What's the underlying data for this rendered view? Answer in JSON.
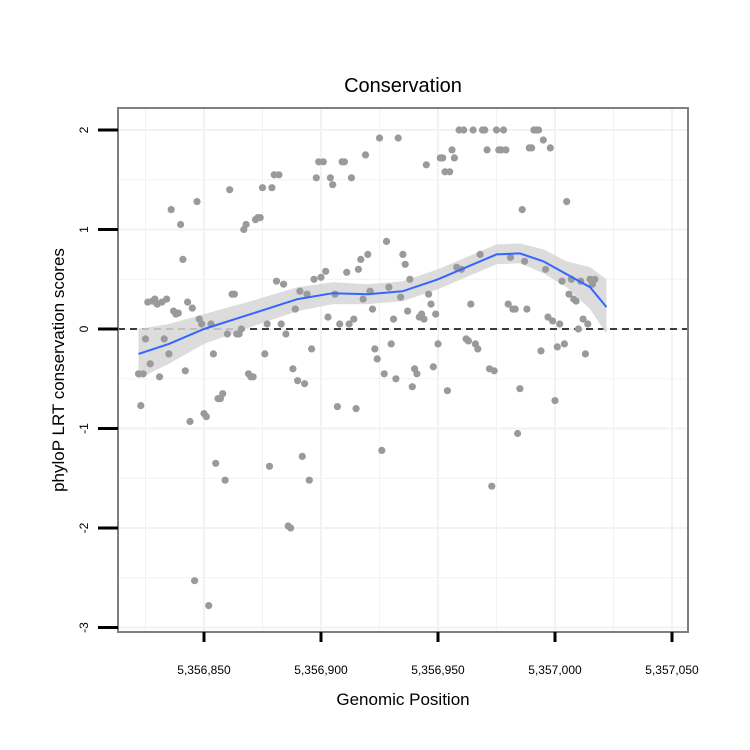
{
  "colors": {
    "points": "#9a9a9a",
    "smooth_line": "#3366ff",
    "ribbon": "#d6d6d6",
    "grid": "#f2f2f2",
    "frame": "#7f7f7f",
    "reference_line": "#000000"
  },
  "chart_data": {
    "type": "scatter",
    "title": "Conservation",
    "xlabel": "Genomic Position",
    "ylabel": "phyloP LRT conservation scores",
    "xlim": [
      5356820,
      5357048
    ],
    "ylim": [
      -3,
      2.2
    ],
    "x_ticks": [
      5356850,
      5356900,
      5356950,
      5357000,
      5357050
    ],
    "x_tick_labels": [
      "5,356,850",
      "5,356,900",
      "5,356,950",
      "5,357,000",
      "5,357,050"
    ],
    "y_ticks": [
      -3,
      -2,
      -1,
      0,
      1,
      2
    ],
    "y_tick_labels": [
      "-3",
      "-2",
      "-1",
      "0",
      "1",
      "2"
    ],
    "grid": true,
    "reference_line": {
      "y": 0,
      "style": "dashed"
    },
    "points": [
      [
        5356822,
        -0.45
      ],
      [
        5356823,
        -0.77
      ],
      [
        5356824,
        -0.45
      ],
      [
        5356825,
        -0.1
      ],
      [
        5356826,
        0.27
      ],
      [
        5356827,
        -0.35
      ],
      [
        5356828,
        0.28
      ],
      [
        5356829,
        0.3
      ],
      [
        5356830,
        0.25
      ],
      [
        5356831,
        -0.48
      ],
      [
        5356832,
        0.27
      ],
      [
        5356833,
        -0.1
      ],
      [
        5356834,
        0.3
      ],
      [
        5356835,
        -0.25
      ],
      [
        5356836,
        1.2
      ],
      [
        5356837,
        0.18
      ],
      [
        5356838,
        0.15
      ],
      [
        5356839,
        0.16
      ],
      [
        5356840,
        1.05
      ],
      [
        5356841,
        0.7
      ],
      [
        5356842,
        -0.42
      ],
      [
        5356843,
        0.27
      ],
      [
        5356844,
        -0.93
      ],
      [
        5356845,
        0.21
      ],
      [
        5356846,
        -2.53
      ],
      [
        5356847,
        1.28
      ],
      [
        5356848,
        0.1
      ],
      [
        5356849,
        0.05
      ],
      [
        5356850,
        -0.85
      ],
      [
        5356851,
        -0.88
      ],
      [
        5356852,
        -2.78
      ],
      [
        5356853,
        0.05
      ],
      [
        5356854,
        -0.25
      ],
      [
        5356855,
        -1.35
      ],
      [
        5356856,
        -0.7
      ],
      [
        5356857,
        -0.7
      ],
      [
        5356858,
        -0.65
      ],
      [
        5356859,
        -1.52
      ],
      [
        5356860,
        -0.05
      ],
      [
        5356861,
        1.4
      ],
      [
        5356862,
        0.35
      ],
      [
        5356863,
        0.35
      ],
      [
        5356864,
        -0.05
      ],
      [
        5356865,
        -0.05
      ],
      [
        5356866,
        0.0
      ],
      [
        5356867,
        1.0
      ],
      [
        5356868,
        1.05
      ],
      [
        5356869,
        -0.45
      ],
      [
        5356870,
        -0.48
      ],
      [
        5356871,
        -0.48
      ],
      [
        5356872,
        1.1
      ],
      [
        5356873,
        1.12
      ],
      [
        5356874,
        1.12
      ],
      [
        5356875,
        1.42
      ],
      [
        5356876,
        -0.25
      ],
      [
        5356877,
        0.05
      ],
      [
        5356878,
        -1.38
      ],
      [
        5356879,
        1.42
      ],
      [
        5356880,
        1.55
      ],
      [
        5356881,
        0.48
      ],
      [
        5356882,
        1.55
      ],
      [
        5356883,
        0.05
      ],
      [
        5356884,
        0.45
      ],
      [
        5356885,
        -0.05
      ],
      [
        5356886,
        -1.98
      ],
      [
        5356887,
        -2.0
      ],
      [
        5356888,
        -0.4
      ],
      [
        5356889,
        0.2
      ],
      [
        5356890,
        -0.52
      ],
      [
        5356891,
        0.38
      ],
      [
        5356892,
        -1.28
      ],
      [
        5356893,
        -0.55
      ],
      [
        5356894,
        0.35
      ],
      [
        5356895,
        -1.52
      ],
      [
        5356896,
        -0.2
      ],
      [
        5356897,
        0.5
      ],
      [
        5356898,
        1.52
      ],
      [
        5356899,
        1.68
      ],
      [
        5356900,
        0.52
      ],
      [
        5356901,
        1.68
      ],
      [
        5356902,
        0.58
      ],
      [
        5356903,
        0.12
      ],
      [
        5356904,
        1.52
      ],
      [
        5356905,
        1.45
      ],
      [
        5356906,
        0.35
      ],
      [
        5356907,
        -0.78
      ],
      [
        5356908,
        0.05
      ],
      [
        5356909,
        1.68
      ],
      [
        5356910,
        1.68
      ],
      [
        5356911,
        0.57
      ],
      [
        5356912,
        0.05
      ],
      [
        5356913,
        1.52
      ],
      [
        5356914,
        0.1
      ],
      [
        5356915,
        -0.8
      ],
      [
        5356916,
        0.6
      ],
      [
        5356917,
        0.7
      ],
      [
        5356918,
        0.3
      ],
      [
        5356919,
        1.75
      ],
      [
        5356920,
        0.75
      ],
      [
        5356921,
        0.38
      ],
      [
        5356922,
        0.2
      ],
      [
        5356923,
        -0.2
      ],
      [
        5356924,
        -0.3
      ],
      [
        5356925,
        1.92
      ],
      [
        5356926,
        -1.22
      ],
      [
        5356927,
        -0.45
      ],
      [
        5356928,
        0.88
      ],
      [
        5356929,
        0.42
      ],
      [
        5356930,
        -0.15
      ],
      [
        5356931,
        0.1
      ],
      [
        5356932,
        -0.5
      ],
      [
        5356933,
        1.92
      ],
      [
        5356934,
        0.32
      ],
      [
        5356935,
        0.75
      ],
      [
        5356936,
        0.65
      ],
      [
        5356937,
        0.18
      ],
      [
        5356938,
        0.5
      ],
      [
        5356939,
        -0.58
      ],
      [
        5356940,
        -0.4
      ],
      [
        5356941,
        -0.45
      ],
      [
        5356942,
        0.12
      ],
      [
        5356943,
        0.15
      ],
      [
        5356944,
        0.1
      ],
      [
        5356945,
        1.65
      ],
      [
        5356946,
        0.35
      ],
      [
        5356947,
        0.25
      ],
      [
        5356948,
        -0.38
      ],
      [
        5356949,
        0.15
      ],
      [
        5356950,
        -0.15
      ],
      [
        5356951,
        1.72
      ],
      [
        5356952,
        1.72
      ],
      [
        5356953,
        1.58
      ],
      [
        5356954,
        -0.62
      ],
      [
        5356955,
        1.58
      ],
      [
        5356956,
        1.8
      ],
      [
        5356957,
        1.72
      ],
      [
        5356958,
        0.62
      ],
      [
        5356959,
        2.0
      ],
      [
        5356960,
        0.6
      ],
      [
        5356961,
        2.0
      ],
      [
        5356962,
        -0.1
      ],
      [
        5356963,
        -0.12
      ],
      [
        5356964,
        0.25
      ],
      [
        5356965,
        2.0
      ],
      [
        5356966,
        -0.15
      ],
      [
        5356967,
        -0.2
      ],
      [
        5356968,
        0.75
      ],
      [
        5356969,
        2.0
      ],
      [
        5356970,
        2.0
      ],
      [
        5356971,
        1.8
      ],
      [
        5356972,
        -0.4
      ],
      [
        5356973,
        -1.58
      ],
      [
        5356974,
        -0.42
      ],
      [
        5356975,
        2.0
      ],
      [
        5356976,
        1.8
      ],
      [
        5356977,
        1.8
      ],
      [
        5356978,
        2.0
      ],
      [
        5356979,
        1.8
      ],
      [
        5356980,
        0.25
      ],
      [
        5356981,
        0.72
      ],
      [
        5356982,
        0.2
      ],
      [
        5356983,
        0.2
      ],
      [
        5356984,
        -1.05
      ],
      [
        5356985,
        -0.6
      ],
      [
        5356986,
        1.2
      ],
      [
        5356987,
        0.68
      ],
      [
        5356988,
        0.2
      ],
      [
        5356989,
        1.82
      ],
      [
        5356990,
        1.82
      ],
      [
        5356991,
        2.0
      ],
      [
        5356992,
        2.0
      ],
      [
        5356993,
        2.0
      ],
      [
        5356994,
        -0.22
      ],
      [
        5356995,
        1.9
      ],
      [
        5356996,
        0.6
      ],
      [
        5356997,
        0.12
      ],
      [
        5356998,
        1.82
      ],
      [
        5356999,
        0.08
      ],
      [
        5357000,
        -0.72
      ],
      [
        5357001,
        -0.18
      ],
      [
        5357002,
        0.05
      ],
      [
        5357003,
        0.48
      ],
      [
        5357004,
        -0.15
      ],
      [
        5357005,
        1.28
      ],
      [
        5357006,
        0.35
      ],
      [
        5357007,
        0.5
      ],
      [
        5357008,
        0.3
      ],
      [
        5357009,
        0.28
      ],
      [
        5357010,
        0.0
      ],
      [
        5357011,
        0.48
      ],
      [
        5357012,
        0.1
      ],
      [
        5357013,
        -0.25
      ],
      [
        5357014,
        0.05
      ],
      [
        5357015,
        0.5
      ],
      [
        5357016,
        0.45
      ],
      [
        5357017,
        0.5
      ]
    ],
    "smooth": {
      "method": "loess",
      "x": [
        5356822,
        5356835,
        5356850,
        5356870,
        5356890,
        5356905,
        5356920,
        5356935,
        5356950,
        5356965,
        5356975,
        5356985,
        5356995,
        5357005,
        5357015,
        5357022
      ],
      "y": [
        -0.25,
        -0.15,
        0.0,
        0.15,
        0.3,
        0.36,
        0.35,
        0.38,
        0.5,
        0.65,
        0.75,
        0.76,
        0.68,
        0.55,
        0.42,
        0.22
      ],
      "ci_low": [
        -0.5,
        -0.35,
        -0.15,
        0.02,
        0.18,
        0.25,
        0.25,
        0.28,
        0.4,
        0.55,
        0.65,
        0.66,
        0.56,
        0.42,
        0.2,
        -0.05
      ],
      "ci_high": [
        0.0,
        0.05,
        0.15,
        0.28,
        0.42,
        0.47,
        0.45,
        0.48,
        0.6,
        0.75,
        0.85,
        0.86,
        0.8,
        0.68,
        0.62,
        0.5
      ]
    }
  }
}
